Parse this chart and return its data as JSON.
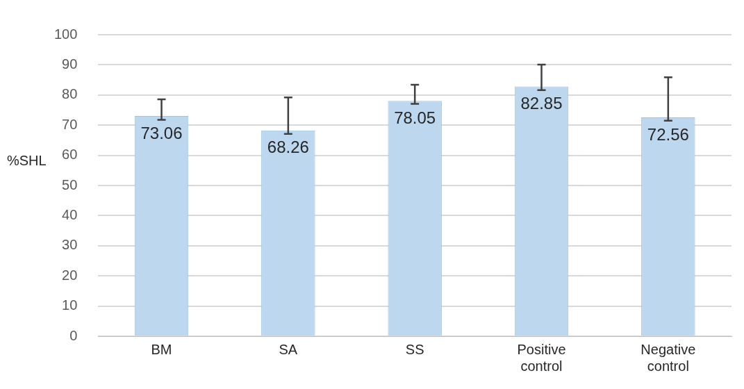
{
  "chart_data": {
    "type": "bar",
    "ylabel": "%SHL",
    "categories": [
      "BM",
      "SA",
      "SS",
      "Positive control",
      "Negative control"
    ],
    "values": [
      73.06,
      68.26,
      78.05,
      82.85,
      72.56
    ],
    "errors": [
      [
        71.8,
        78.6
      ],
      [
        67.1,
        79.2
      ],
      [
        77.1,
        83.4
      ],
      [
        81.6,
        90.1
      ],
      [
        71.5,
        85.9
      ]
    ],
    "color": "#bdd7ee",
    "ylim": [
      0,
      100
    ],
    "yticks": [
      0,
      10,
      20,
      30,
      40,
      50,
      60,
      70,
      80,
      90,
      100
    ],
    "grid": "y",
    "data_labels": true,
    "legend": false
  }
}
